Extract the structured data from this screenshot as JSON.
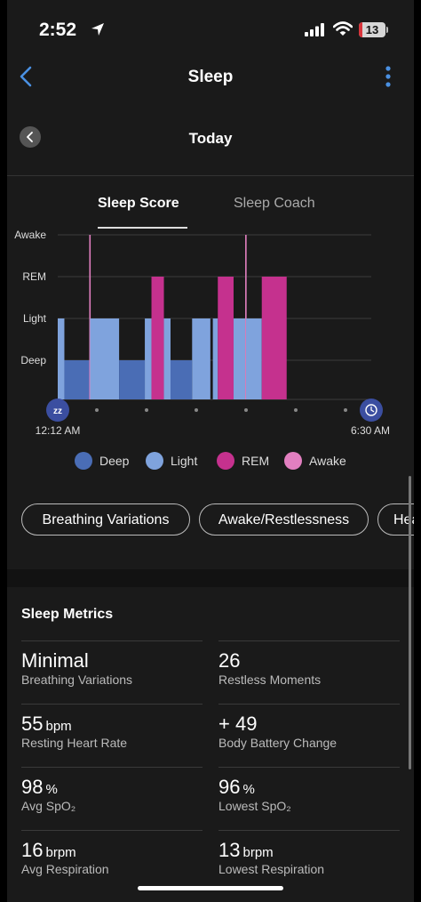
{
  "status_bar": {
    "time": "2:52",
    "battery_level": "13",
    "battery_fraction": 0.13
  },
  "nav": {
    "title": "Sleep"
  },
  "day_nav": {
    "title": "Today"
  },
  "tabs": [
    {
      "label": "Sleep Score",
      "active": true
    },
    {
      "label": "Sleep Coach",
      "active": false
    }
  ],
  "chart_data": {
    "type": "bar",
    "title": "",
    "xlabel": "",
    "ylabel": "",
    "y_categories": [
      "Deep",
      "Light",
      "REM",
      "Awake"
    ],
    "x_start_label": "12:12 AM",
    "x_end_label": "6:30 AM",
    "x_range": [
      0,
      378
    ],
    "x_unit": "minutes after 12:12 AM",
    "grid": true,
    "segments": [
      {
        "stage": "Light",
        "start": 0,
        "end": 8
      },
      {
        "stage": "Deep",
        "start": 8,
        "end": 38
      },
      {
        "stage": "Awake",
        "start": 38,
        "end": 39
      },
      {
        "stage": "Light",
        "start": 39,
        "end": 74
      },
      {
        "stage": "Deep",
        "start": 74,
        "end": 105
      },
      {
        "stage": "Light",
        "start": 105,
        "end": 113
      },
      {
        "stage": "REM",
        "start": 113,
        "end": 128
      },
      {
        "stage": "Light",
        "start": 128,
        "end": 136
      },
      {
        "stage": "Deep",
        "start": 136,
        "end": 162
      },
      {
        "stage": "Light",
        "start": 162,
        "end": 184
      },
      {
        "stage": "Light",
        "start": 187,
        "end": 193
      },
      {
        "stage": "REM",
        "start": 193,
        "end": 212
      },
      {
        "stage": "Light",
        "start": 212,
        "end": 226
      },
      {
        "stage": "Awake",
        "start": 226,
        "end": 227
      },
      {
        "stage": "Light",
        "start": 227,
        "end": 246
      },
      {
        "stage": "REM",
        "start": 246,
        "end": 276
      }
    ],
    "legend": [
      {
        "name": "Deep",
        "color": "#4a6db5"
      },
      {
        "name": "Light",
        "color": "#7fa3dd"
      },
      {
        "name": "REM",
        "color": "#c5318e"
      },
      {
        "name": "Awake",
        "color": "#e27fc0"
      }
    ],
    "stage_colors": {
      "Deep": "#4a6db5",
      "Light": "#7fa3dd",
      "REM": "#c5318e",
      "Awake": "#e27fc0"
    }
  },
  "chips": [
    "Breathing Variations",
    "Awake/Restlessness",
    "Heart Rate"
  ],
  "metrics": {
    "title": "Sleep Metrics",
    "items": [
      {
        "value": "Minimal",
        "unit": "",
        "label": "Breathing Variations"
      },
      {
        "value": "26",
        "unit": "",
        "label": "Restless Moments"
      },
      {
        "value": "55",
        "unit": "bpm",
        "label": "Resting Heart Rate"
      },
      {
        "value": "+ 49",
        "unit": "",
        "label": "Body Battery Change"
      },
      {
        "value": "98",
        "unit": "%",
        "label": "Avg SpO₂"
      },
      {
        "value": "96",
        "unit": "%",
        "label": "Lowest SpO₂"
      },
      {
        "value": "16",
        "unit": "brpm",
        "label": "Avg Respiration"
      },
      {
        "value": "13",
        "unit": "brpm",
        "label": "Lowest Respiration"
      }
    ]
  },
  "colors": {
    "accent": "#4a90e2",
    "background": "#1a1a1a"
  }
}
